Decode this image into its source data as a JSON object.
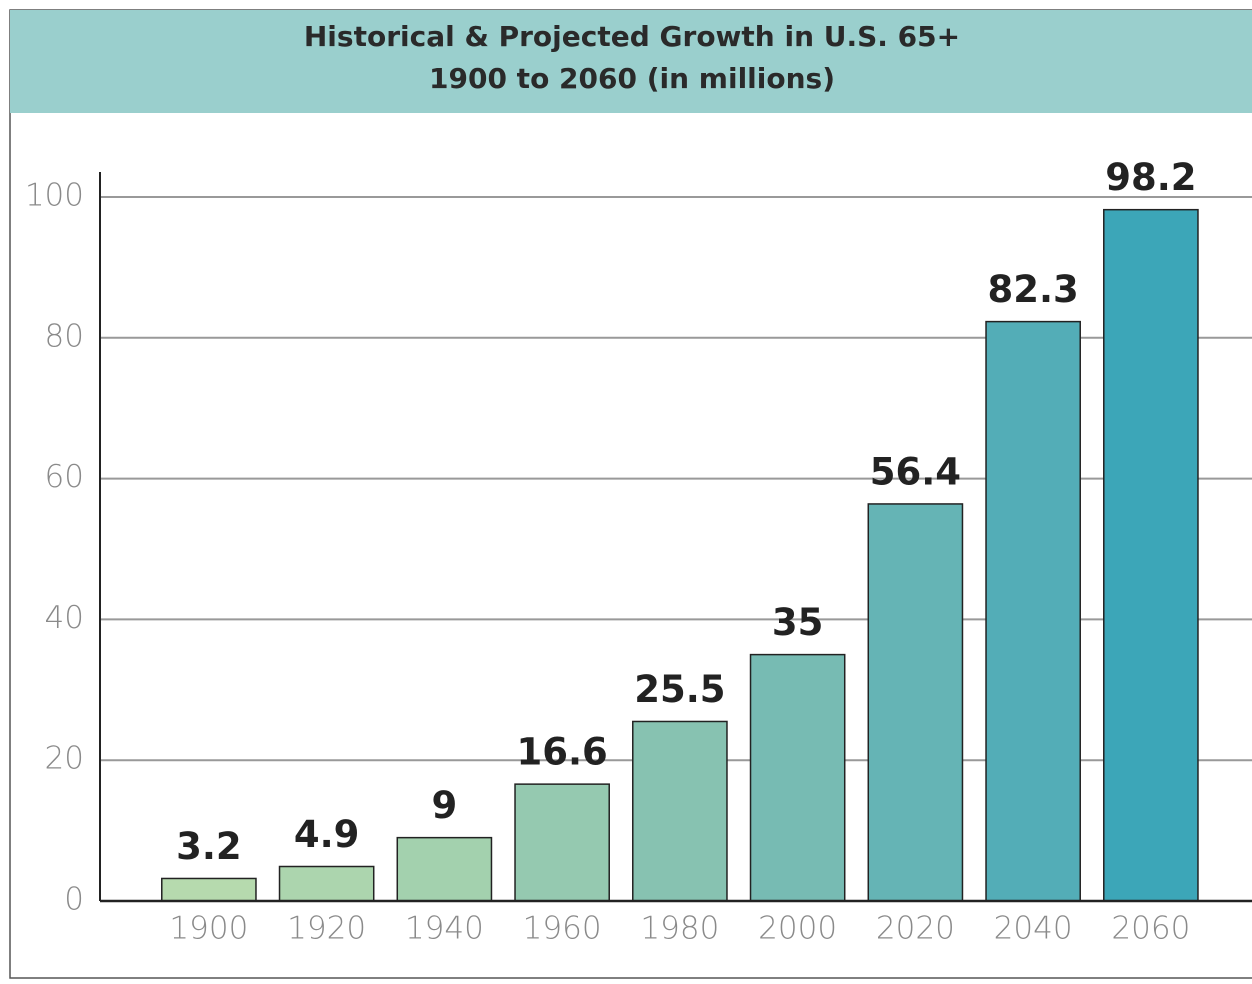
{
  "chart_data": {
    "type": "bar",
    "title": "Historical & Projected Growth in U.S. 65+",
    "subtitle": "1900 to 2060 (in millions)",
    "categories": [
      "1900",
      "1920",
      "1940",
      "1960",
      "1980",
      "2000",
      "2020",
      "2040",
      "2060"
    ],
    "values": [
      3.2,
      4.9,
      9,
      16.6,
      25.5,
      35,
      56.4,
      82.3,
      98.2
    ],
    "colors": [
      "#b6daae",
      "#acd5ae",
      "#a3d1ae",
      "#95c9b0",
      "#87c2b1",
      "#77bbb3",
      "#65b4b5",
      "#53adb7",
      "#3ca6b8"
    ],
    "ylim": [
      0,
      100
    ],
    "yticks": [
      0,
      20,
      40,
      60,
      80,
      100
    ],
    "grid": true
  }
}
